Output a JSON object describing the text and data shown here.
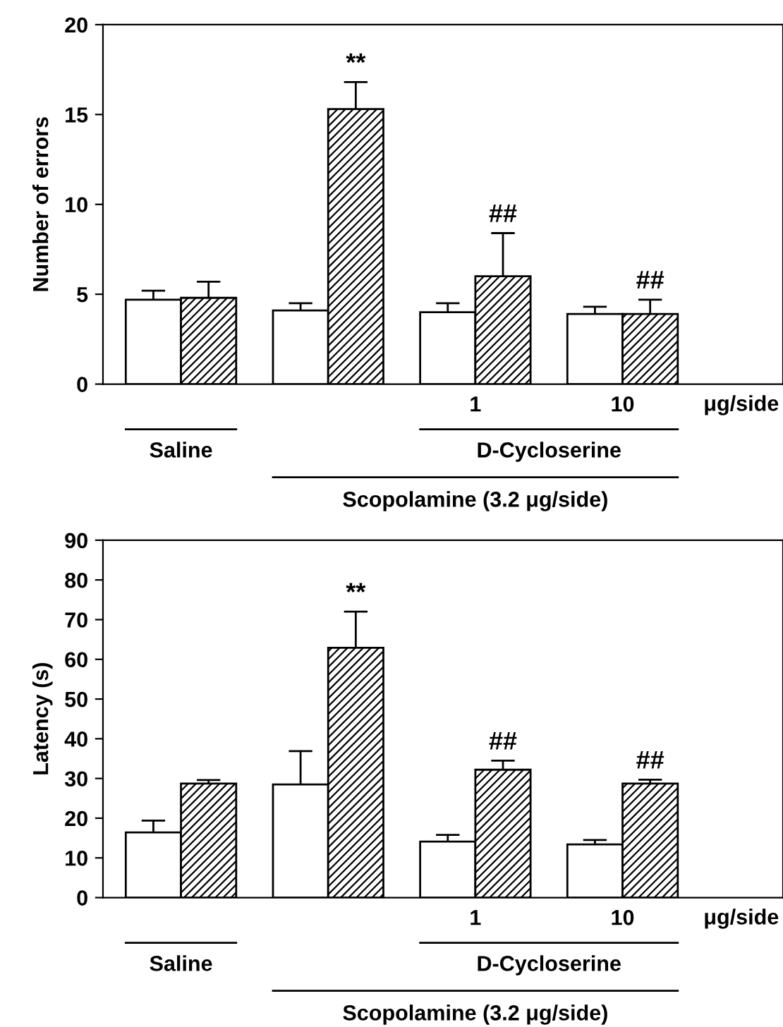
{
  "chart_data": [
    {
      "type": "bar",
      "ylabel": "Number of errors",
      "categories": [
        null,
        null,
        "1",
        "10"
      ],
      "ylim": [
        0,
        20
      ],
      "yticks": [
        0,
        5,
        10,
        15,
        20
      ],
      "grid": false,
      "legend": false,
      "series": [
        {
          "color": "#ffffff",
          "values": [
            4.7,
            4.1,
            4.0,
            3.9
          ],
          "errors": [
            0.5,
            0.4,
            0.5,
            0.4
          ]
        },
        {
          "color": "#000000",
          "values": [
            4.8,
            15.3,
            6.0,
            3.9
          ],
          "errors": [
            0.9,
            1.5,
            2.4,
            0.8
          ]
        }
      ],
      "annotations": [
        "**",
        "##",
        "##",
        "μg/side",
        "Saline",
        "D-Cycloserine",
        "Scopolamine (3.2 μg/side)"
      ]
    },
    {
      "type": "bar",
      "ylabel": "Latency (s)",
      "categories": [
        null,
        null,
        "1",
        "10"
      ],
      "ylim": [
        0,
        90
      ],
      "yticks": [
        0,
        10,
        20,
        30,
        40,
        50,
        60,
        70,
        80,
        90
      ],
      "grid": false,
      "legend": false,
      "series": [
        {
          "color": "#ffffff",
          "values": [
            16.4,
            28.5,
            14.1,
            13.4
          ],
          "errors": [
            3,
            8.4,
            1.7,
            1.1
          ]
        },
        {
          "color": "#000000",
          "values": [
            28.7,
            62.9,
            32.2,
            28.7
          ],
          "errors": [
            0.9,
            9.1,
            2.3,
            1.0
          ]
        }
      ],
      "annotations": [
        "**",
        "##",
        "##",
        "μg/side",
        "Saline",
        "D-Cycloserine",
        "Scopolamine (3.2 μg/side)"
      ]
    }
  ]
}
